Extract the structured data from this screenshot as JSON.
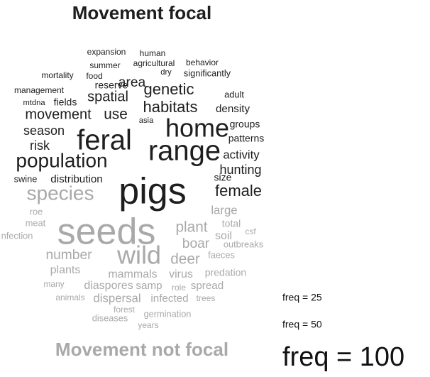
{
  "chart_data": {
    "type": "wordcloud",
    "groups": [
      {
        "name": "Movement focal",
        "color": "#1e1e1e",
        "words": [
          "expansion",
          "human",
          "summer",
          "agricultural",
          "behavior",
          "dry",
          "significantly",
          "mortality",
          "food",
          "reserve",
          "area",
          "management",
          "adult",
          "mtdna",
          "fields",
          "spatial",
          "genetic",
          "habitats",
          "density",
          "movement",
          "use",
          "asia",
          "home",
          "groups",
          "season",
          "patterns",
          "feral",
          "risk",
          "range",
          "activity",
          "population",
          "hunting",
          "swine",
          "distribution",
          "size",
          "pigs",
          "female"
        ],
        "freq": [
          30,
          30,
          30,
          30,
          30,
          28,
          32,
          30,
          30,
          35,
          48,
          30,
          32,
          28,
          35,
          50,
          55,
          55,
          38,
          50,
          52,
          28,
          90,
          35,
          45,
          35,
          100,
          45,
          100,
          42,
          70,
          45,
          32,
          38,
          35,
          130,
          55
        ]
      },
      {
        "name": "Movement not focal",
        "color": "#a9a9a9",
        "words": [
          "species",
          "roe",
          "large",
          "meat",
          "total",
          "seeds",
          "plant",
          "csf",
          "nfection",
          "soil",
          "outbreaks",
          "boar",
          "number",
          "wild",
          "deer",
          "faeces",
          "plants",
          "mammals",
          "virus",
          "predation",
          "many",
          "diaspores",
          "samp",
          "role",
          "spread",
          "animals",
          "dispersal",
          "infected",
          "trees",
          "forest",
          "germination",
          "diseases",
          "years"
        ],
        "freq": [
          70,
          32,
          42,
          32,
          35,
          130,
          52,
          30,
          32,
          40,
          32,
          48,
          48,
          90,
          52,
          32,
          40,
          40,
          40,
          35,
          30,
          40,
          38,
          30,
          38,
          30,
          42,
          38,
          30,
          30,
          32,
          32,
          30
        ]
      }
    ],
    "legend": [
      {
        "value": 25,
        "label": "freq = 25"
      },
      {
        "value": 50,
        "label": "freq = 50"
      },
      {
        "value": 100,
        "label": "freq = 100"
      }
    ]
  }
}
